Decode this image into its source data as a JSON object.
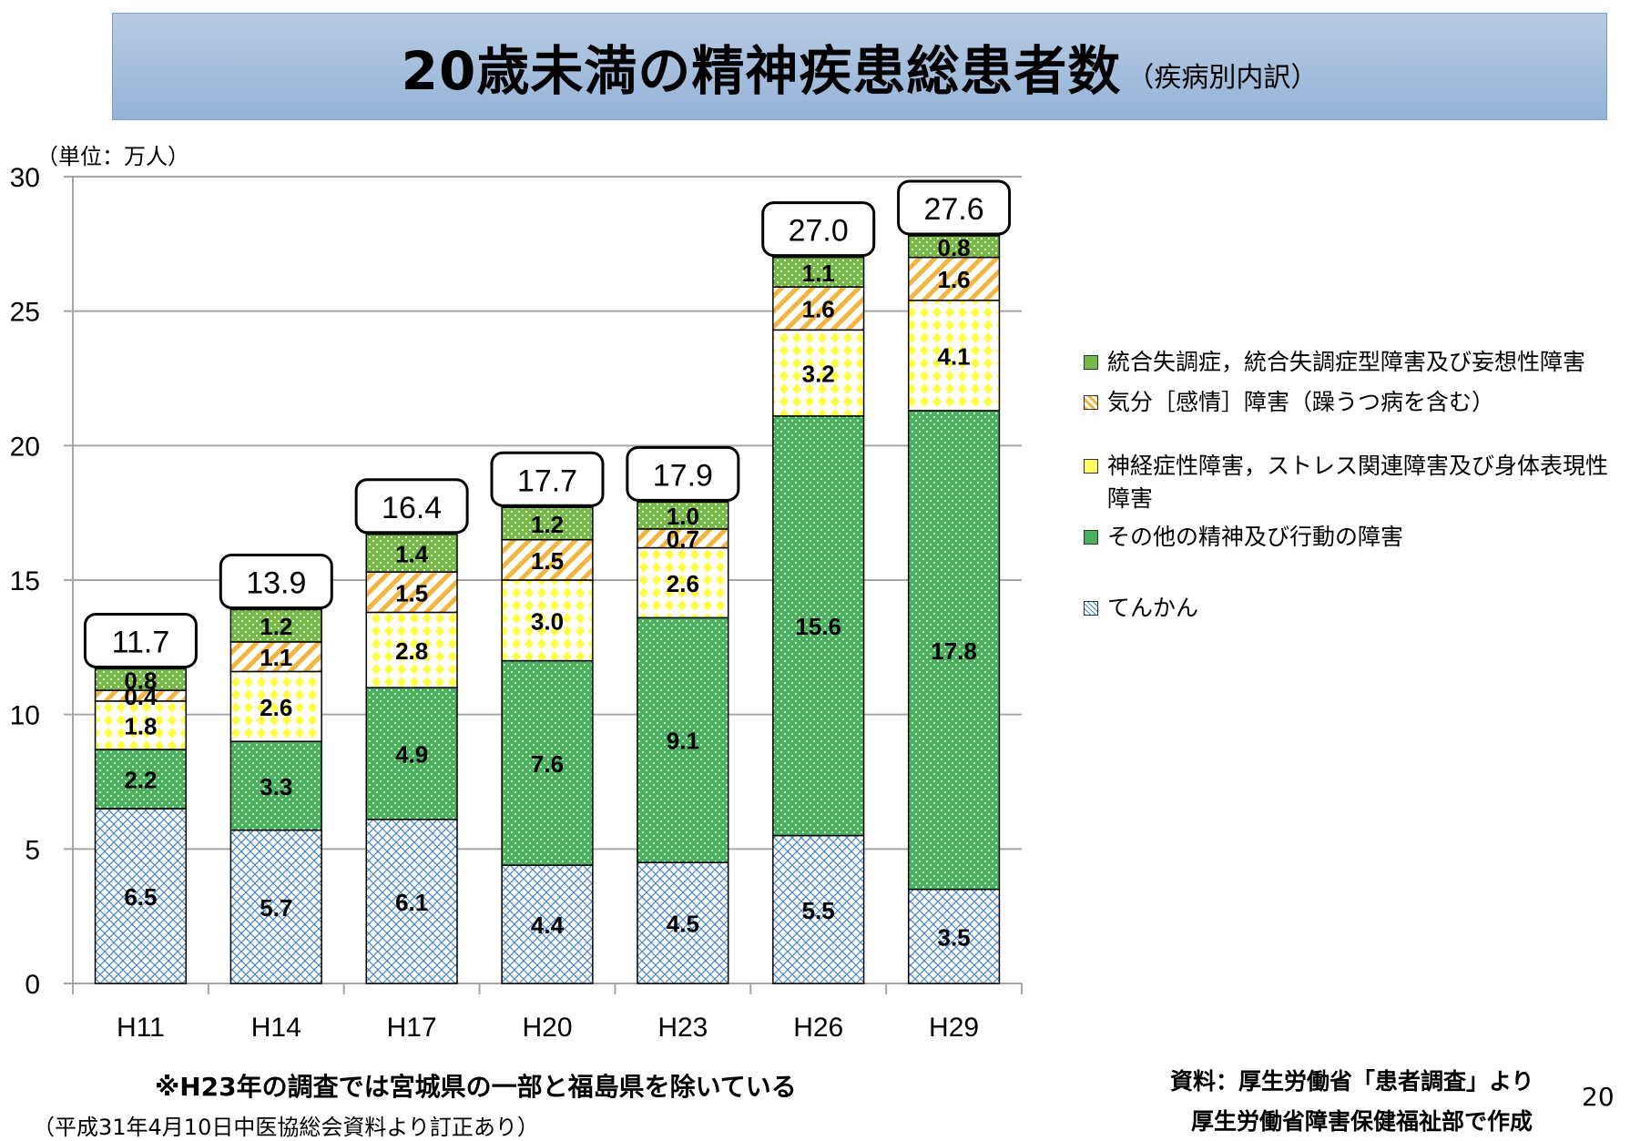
{
  "header": {
    "title": "20歳未満の精神疾患総患者数",
    "subtitle": "（疾病別内訳）"
  },
  "unit_label": "（単位：万人）",
  "legend": [
    {
      "key": "schizo",
      "label": "統合失調症，統合失調症型障害及び妄想性障害",
      "pattern": "green-dots-light",
      "color": "#77b84a"
    },
    {
      "key": "mood",
      "label": "気分［感情］障害（躁うつ病を含む）",
      "pattern": "orange-stripes",
      "color": "#f2b640"
    },
    {
      "key": "neurotic",
      "label": "神経症性障害，ストレス関連障害及び身体表現性障害",
      "pattern": "yellow-diamonds",
      "color": "#ffff40"
    },
    {
      "key": "other",
      "label": "その他の精神及び行動の障害",
      "pattern": "green-dots",
      "color": "#4caf60"
    },
    {
      "key": "epilepsy",
      "label": "てんかん",
      "pattern": "blue-crosshatch",
      "color": "#4a86c8"
    }
  ],
  "chart_data": {
    "type": "bar",
    "stacked": true,
    "title": "20歳未満の精神疾患総患者数（疾病別内訳）",
    "xlabel": "",
    "ylabel": "（単位：万人）",
    "ylim": [
      0,
      30
    ],
    "yticks": [
      0,
      5,
      10,
      15,
      20,
      25,
      30
    ],
    "grid": true,
    "legend_position": "right",
    "categories": [
      "H11",
      "H14",
      "H17",
      "H20",
      "H23",
      "H26",
      "H29"
    ],
    "series": [
      {
        "name": "てんかん",
        "key": "epilepsy",
        "values": [
          6.5,
          5.7,
          6.1,
          4.4,
          4.5,
          5.5,
          3.5
        ]
      },
      {
        "name": "その他の精神及び行動の障害",
        "key": "other",
        "values": [
          2.2,
          3.3,
          4.9,
          7.6,
          9.1,
          15.6,
          17.8
        ]
      },
      {
        "name": "神経症性障害，ストレス関連障害及び身体表現性障害",
        "key": "neurotic",
        "values": [
          1.8,
          2.6,
          2.8,
          3.0,
          2.6,
          3.2,
          4.1
        ]
      },
      {
        "name": "気分［感情］障害（躁うつ病を含む）",
        "key": "mood",
        "values": [
          0.4,
          1.1,
          1.5,
          1.5,
          0.7,
          1.6,
          1.6
        ]
      },
      {
        "name": "統合失調症，統合失調症型障害及び妄想性障害",
        "key": "schizo",
        "values": [
          0.8,
          1.2,
          1.4,
          1.2,
          1.0,
          1.1,
          0.8
        ]
      }
    ],
    "totals": [
      "11.7",
      "13.9",
      "16.4",
      "17.7",
      "17.9",
      "27.0",
      "27.6"
    ]
  },
  "footer": {
    "note": "※H23年の調査では宮城県の一部と福島県を除いている",
    "correction": "（平成31年4月10日中医協総会資料より訂正あり）",
    "source_line1": "資料：厚生労働省「患者調査」より",
    "source_line2": "厚生労働省障害保健福祉部で作成",
    "page_number": "20"
  }
}
